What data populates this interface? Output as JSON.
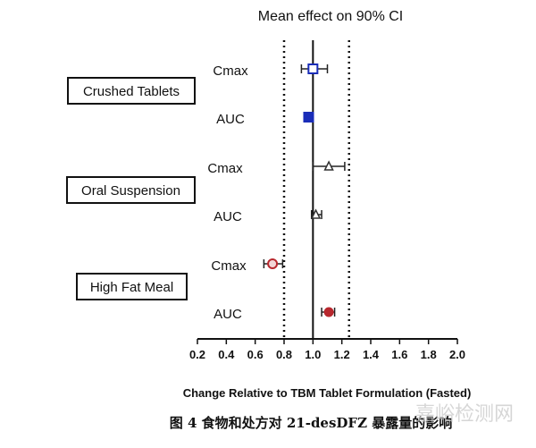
{
  "chart_data": {
    "type": "forest",
    "title": "Mean effect on 90% CI",
    "xlabel": "Change Relative to TBM Tablet Formulation (Fasted)",
    "xlim": [
      0.2,
      2.0
    ],
    "xticks": [
      "0.2",
      "0.4",
      "0.6",
      "0.8",
      "1.0",
      "1.2",
      "1.4",
      "1.6",
      "1.8",
      "2.0"
    ],
    "reference_line": 1.0,
    "bounds": [
      0.8,
      1.25
    ],
    "groups": [
      {
        "label": "Crushed Tablets",
        "color": "#1a2db8",
        "rows": [
          {
            "label": "Cmax",
            "marker": "square-open",
            "estimate": 1.0,
            "lower": 0.92,
            "upper": 1.1
          },
          {
            "label": "AUC",
            "marker": "square-filled",
            "estimate": 0.97,
            "lower": 0.94,
            "upper": 1.0
          }
        ]
      },
      {
        "label": "Oral Suspension",
        "color": "#333333",
        "rows": [
          {
            "label": "Cmax",
            "marker": "triangle-open",
            "estimate": 1.11,
            "lower": 1.0,
            "upper": 1.22
          },
          {
            "label": "AUC",
            "marker": "triangle-open",
            "estimate": 1.02,
            "lower": 0.99,
            "upper": 1.06
          }
        ]
      },
      {
        "label": "High Fat Meal",
        "color": "#b8282e",
        "rows": [
          {
            "label": "Cmax",
            "marker": "circle-open",
            "estimate": 0.72,
            "lower": 0.66,
            "upper": 0.79
          },
          {
            "label": "AUC",
            "marker": "circle-filled",
            "estimate": 1.11,
            "lower": 1.06,
            "upper": 1.15
          }
        ]
      }
    ]
  },
  "caption": "图 4  食物和处方对 21-desDFZ 暴露量的影响",
  "watermark": "嘉峪检测网"
}
